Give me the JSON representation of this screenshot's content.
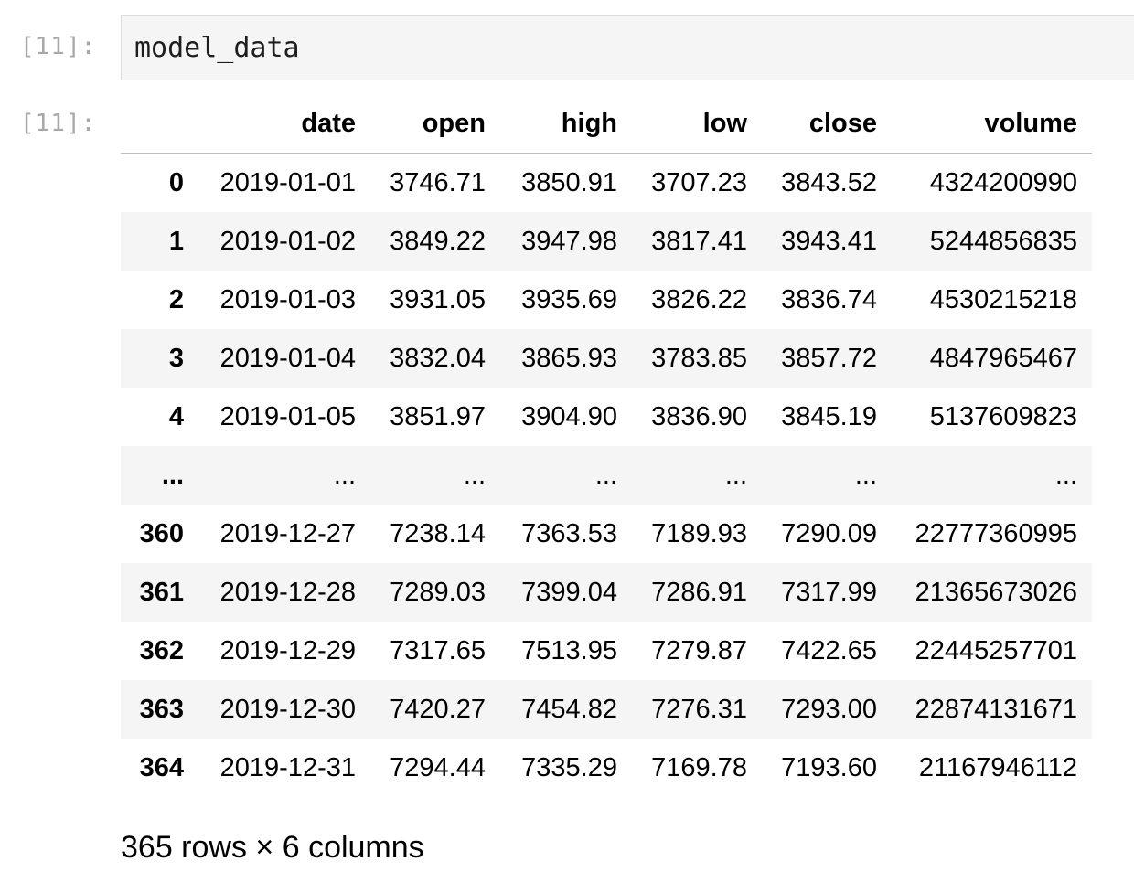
{
  "input_cell": {
    "prompt": "[11]:",
    "code": "model_data"
  },
  "output_cell": {
    "prompt": "[11]:",
    "dataframe": {
      "columns": [
        "",
        "date",
        "open",
        "high",
        "low",
        "close",
        "volume"
      ],
      "rows": [
        [
          "0",
          "2019-01-01",
          "3746.71",
          "3850.91",
          "3707.23",
          "3843.52",
          "4324200990"
        ],
        [
          "1",
          "2019-01-02",
          "3849.22",
          "3947.98",
          "3817.41",
          "3943.41",
          "5244856835"
        ],
        [
          "2",
          "2019-01-03",
          "3931.05",
          "3935.69",
          "3826.22",
          "3836.74",
          "4530215218"
        ],
        [
          "3",
          "2019-01-04",
          "3832.04",
          "3865.93",
          "3783.85",
          "3857.72",
          "4847965467"
        ],
        [
          "4",
          "2019-01-05",
          "3851.97",
          "3904.90",
          "3836.90",
          "3845.19",
          "5137609823"
        ],
        [
          "...",
          "...",
          "...",
          "...",
          "...",
          "...",
          "..."
        ],
        [
          "360",
          "2019-12-27",
          "7238.14",
          "7363.53",
          "7189.93",
          "7290.09",
          "22777360995"
        ],
        [
          "361",
          "2019-12-28",
          "7289.03",
          "7399.04",
          "7286.91",
          "7317.99",
          "21365673026"
        ],
        [
          "362",
          "2019-12-29",
          "7317.65",
          "7513.95",
          "7279.87",
          "7422.65",
          "22445257701"
        ],
        [
          "363",
          "2019-12-30",
          "7420.27",
          "7454.82",
          "7276.31",
          "7293.00",
          "22874131671"
        ],
        [
          "364",
          "2019-12-31",
          "7294.44",
          "7335.29",
          "7169.78",
          "7193.60",
          "21167946112"
        ]
      ]
    },
    "summary": "365 rows × 6 columns"
  }
}
